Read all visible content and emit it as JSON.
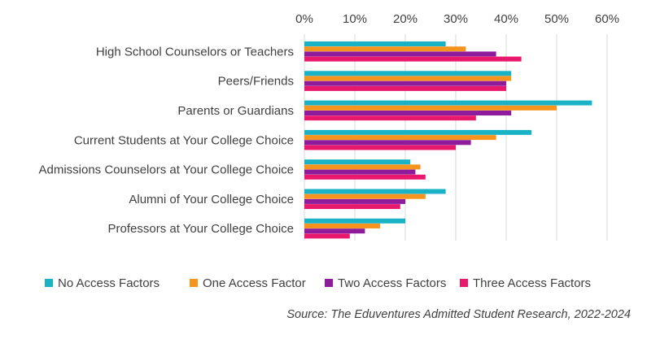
{
  "chart_data": {
    "type": "bar",
    "orientation": "horizontal",
    "categories": [
      "High School Counselors or Teachers",
      "Peers/Friends",
      "Parents or Guardians",
      "Current Students at Your College Choice",
      "Admissions Counselors at Your College Choice",
      "Alumni of Your College Choice",
      "Professors at Your College Choice"
    ],
    "series": [
      {
        "name": "No Access Factors",
        "color": "#1ab3c6",
        "values": [
          28,
          41,
          57,
          45,
          21,
          28,
          20
        ]
      },
      {
        "name": "One Access Factor",
        "color": "#f7941d",
        "values": [
          32,
          41,
          50,
          38,
          23,
          24,
          15
        ]
      },
      {
        "name": "Two Access Factors",
        "color": "#8e1b9b",
        "values": [
          38,
          40,
          41,
          33,
          22,
          20,
          12
        ]
      },
      {
        "name": "Three Access Factors",
        "color": "#e8186c",
        "values": [
          43,
          40,
          34,
          30,
          24,
          19,
          9
        ]
      }
    ],
    "xlim": [
      0,
      60
    ],
    "xticks": [
      "0%",
      "10%",
      "20%",
      "30%",
      "40%",
      "50%",
      "60%"
    ],
    "axis_position": "top",
    "grid": true,
    "legend_position": "bottom",
    "title": "",
    "xlabel": "",
    "ylabel": ""
  },
  "source": "Source: The Eduventures Admitted Student Research, 2022-2024"
}
